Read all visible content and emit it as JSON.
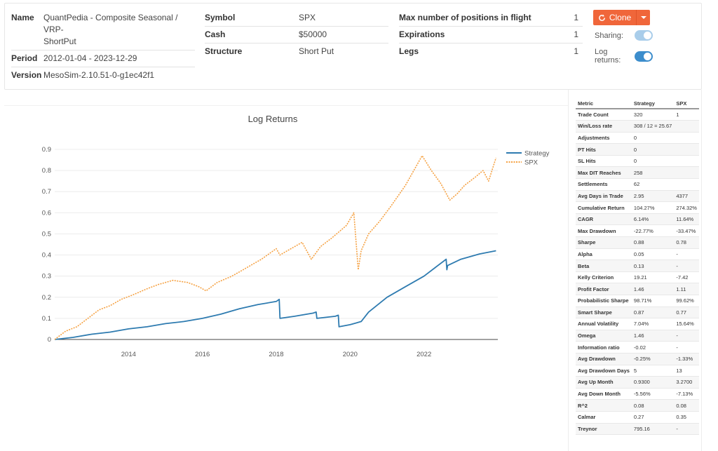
{
  "info": {
    "name_label": "Name",
    "name_value_1": "QuantPedia - Composite Seasonal / VRP-",
    "name_value_2": "ShortPut",
    "period_label": "Period",
    "period_value": "2012-01-04 - 2023-12-29",
    "version_label": "Version",
    "version_value": "MesoSim-2.10.51-0-g1ec42f1",
    "symbol_label": "Symbol",
    "symbol_value": "SPX",
    "cash_label": "Cash",
    "cash_value": "$50000",
    "structure_label": "Structure",
    "structure_value": "Short Put",
    "max_positions_label": "Max number of positions in flight",
    "max_positions_value": "1",
    "expirations_label": "Expirations",
    "expirations_value": "1",
    "legs_label": "Legs",
    "legs_value": "1"
  },
  "controls": {
    "clone_label": "Clone",
    "sharing_label": "Sharing:",
    "log_returns_label": "Log returns:",
    "sharing_on": true,
    "log_returns_on": true,
    "toggle_color": "#3c8dcc",
    "toggle_off_color": "#a9cdea",
    "clone_color": "#f0663a"
  },
  "chart_data": {
    "type": "line",
    "title": "Log Returns",
    "xlabel": "",
    "ylabel": "",
    "x_ticks": [
      "2014",
      "2016",
      "2018",
      "2020",
      "2022"
    ],
    "y_ticks": [
      "0",
      "0.1",
      "0.2",
      "0.3",
      "0.4",
      "0.5",
      "0.6",
      "0.7",
      "0.8",
      "0.9"
    ],
    "xlim": [
      2012.0,
      2024.0
    ],
    "ylim": [
      0,
      0.9
    ],
    "grid": "horizontal",
    "legend": "top-right",
    "series": [
      {
        "name": "Strategy",
        "color": "#2e7bb0",
        "style": "solid",
        "x": [
          2012.0,
          2012.5,
          2013.0,
          2013.5,
          2014.0,
          2014.5,
          2015.0,
          2015.5,
          2016.0,
          2016.5,
          2017.0,
          2017.5,
          2018.0,
          2018.08,
          2018.1,
          2018.5,
          2019.0,
          2019.08,
          2019.1,
          2019.6,
          2019.68,
          2019.7,
          2020.0,
          2020.3,
          2020.5,
          2021.0,
          2021.5,
          2022.0,
          2022.3,
          2022.6,
          2022.62,
          2022.64,
          2023.0,
          2023.5,
          2023.95
        ],
        "y": [
          0,
          0.01,
          0.025,
          0.035,
          0.05,
          0.06,
          0.075,
          0.085,
          0.1,
          0.12,
          0.145,
          0.165,
          0.18,
          0.19,
          0.1,
          0.11,
          0.125,
          0.13,
          0.1,
          0.11,
          0.115,
          0.06,
          0.07,
          0.085,
          0.13,
          0.2,
          0.25,
          0.3,
          0.34,
          0.38,
          0.33,
          0.35,
          0.38,
          0.405,
          0.42
        ]
      },
      {
        "name": "SPX",
        "color": "#f5a142",
        "style": "dotted",
        "x": [
          2012.0,
          2012.3,
          2012.6,
          2012.9,
          2013.2,
          2013.5,
          2013.8,
          2014.1,
          2014.5,
          2014.8,
          2015.2,
          2015.6,
          2015.9,
          2016.1,
          2016.4,
          2016.8,
          2017.2,
          2017.6,
          2018.0,
          2018.1,
          2018.3,
          2018.7,
          2018.95,
          2019.2,
          2019.5,
          2019.9,
          2020.1,
          2020.22,
          2020.3,
          2020.5,
          2020.8,
          2021.1,
          2021.5,
          2021.95,
          2022.2,
          2022.45,
          2022.7,
          2022.9,
          2023.1,
          2023.4,
          2023.6,
          2023.75,
          2023.95
        ],
        "y": [
          0,
          0.04,
          0.06,
          0.1,
          0.14,
          0.16,
          0.19,
          0.21,
          0.24,
          0.26,
          0.28,
          0.27,
          0.25,
          0.23,
          0.27,
          0.3,
          0.34,
          0.38,
          0.43,
          0.4,
          0.42,
          0.46,
          0.38,
          0.44,
          0.48,
          0.54,
          0.6,
          0.33,
          0.42,
          0.5,
          0.56,
          0.63,
          0.73,
          0.87,
          0.8,
          0.74,
          0.66,
          0.69,
          0.73,
          0.77,
          0.8,
          0.75,
          0.86
        ]
      }
    ]
  },
  "metrics": {
    "headers": [
      "Metric",
      "Strategy",
      "SPX"
    ],
    "rows": [
      [
        "Trade Count",
        "320",
        "1"
      ],
      [
        "Win/Loss rate",
        "308 / 12 = 25.67",
        ""
      ],
      [
        "Adjustments",
        "0",
        ""
      ],
      [
        "PT Hits",
        "0",
        ""
      ],
      [
        "SL Hits",
        "0",
        ""
      ],
      [
        "Max DIT Reaches",
        "258",
        ""
      ],
      [
        "Settlements",
        "62",
        ""
      ],
      [
        "Avg Days in Trade",
        "2.95",
        "4377"
      ],
      [
        "Cumulative Return",
        "104.27%",
        "274.32%"
      ],
      [
        "CAGR",
        "6.14%",
        "11.64%"
      ],
      [
        "Max Drawdown",
        "-22.77%",
        "-33.47%"
      ],
      [
        "Sharpe",
        "0.88",
        "0.78"
      ],
      [
        "Alpha",
        "0.05",
        "-"
      ],
      [
        "Beta",
        "0.13",
        "-"
      ],
      [
        "Kelly Criterion",
        "19.21",
        "-7.42"
      ],
      [
        "Profit Factor",
        "1.46",
        "1.11"
      ],
      [
        "Probabilistic Sharpe",
        "98.71%",
        "99.62%"
      ],
      [
        "Smart Sharpe",
        "0.87",
        "0.77"
      ],
      [
        "Annual Volatility",
        "7.04%",
        "15.64%"
      ],
      [
        "Omega",
        "1.46",
        "-"
      ],
      [
        "Information ratio",
        "-0.02",
        "-"
      ],
      [
        "Avg Drawdown",
        "-0.25%",
        "-1.33%"
      ],
      [
        "Avg Drawdown Days",
        "5",
        "13"
      ],
      [
        "Avg Up Month",
        "0.9300",
        "3.2700"
      ],
      [
        "Avg Down Month",
        "-5.56%",
        "-7.13%"
      ],
      [
        "R^2",
        "0.08",
        "0.08"
      ],
      [
        "Calmar",
        "0.27",
        "0.35"
      ],
      [
        "Treynor",
        "795.16",
        "-"
      ]
    ]
  }
}
